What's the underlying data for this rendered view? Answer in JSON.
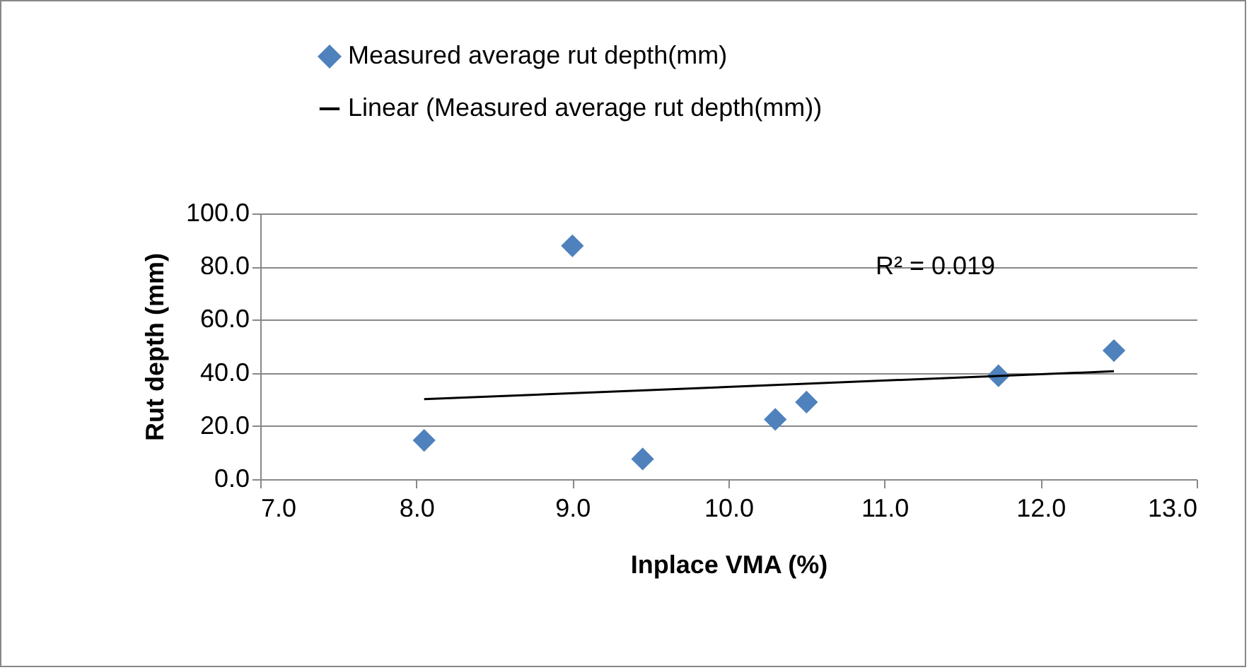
{
  "chart_data": {
    "type": "scatter",
    "xlabel": "Inplace VMA (%)",
    "ylabel": "Rut depth  (mm)",
    "xlim": [
      7,
      13
    ],
    "xticks": [
      {
        "value": 7,
        "label": "7.0"
      },
      {
        "value": 8,
        "label": "8.0"
      },
      {
        "value": 9,
        "label": "9.0"
      },
      {
        "value": 10,
        "label": "10.0"
      },
      {
        "value": 11,
        "label": "11.0"
      },
      {
        "value": 12,
        "label": "12.0"
      },
      {
        "value": 13,
        "label": "13.0"
      }
    ],
    "ylim": [
      0,
      100
    ],
    "yticks": [
      {
        "value": 0,
        "label": "0.0"
      },
      {
        "value": 20,
        "label": "20.0"
      },
      {
        "value": 40,
        "label": "40.0"
      },
      {
        "value": 60,
        "label": "60.0"
      },
      {
        "value": 80,
        "label": "80.0"
      },
      {
        "value": 100,
        "label": "100.0"
      }
    ],
    "grid": "y",
    "legend": "top",
    "annotations": [
      "R² = 0.019"
    ],
    "series": [
      {
        "name": "Measured average rut depth(mm)",
        "color": "#4f81bd",
        "marker": "diamond",
        "x": [
          8.05,
          9.0,
          9.45,
          10.3,
          10.5,
          11.73,
          12.47
        ],
        "values": [
          14.6,
          87.8,
          7.6,
          22.5,
          29,
          38.9,
          48.4
        ]
      },
      {
        "name": "Linear (Measured average rut depth(mm))",
        "type": "line",
        "color": "#000000",
        "marker": "none",
        "line_style": "solid",
        "x": [
          8.05,
          12.47
        ],
        "values": [
          30.1,
          40.6
        ]
      }
    ]
  }
}
